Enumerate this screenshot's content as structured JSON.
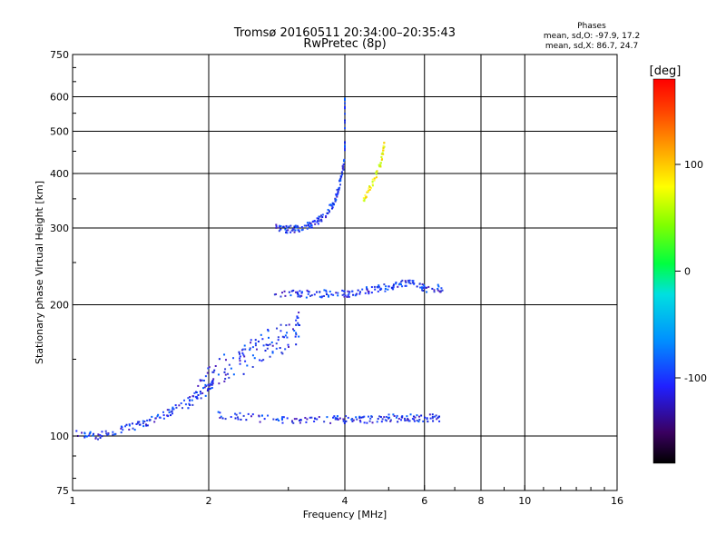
{
  "chart_data": {
    "type": "scatter",
    "title": "Tromsø 20160511 20:34:00–20:35:43",
    "subtitle": "RwPretec (8p)",
    "xlabel": "Frequency [MHz]",
    "ylabel": "Stationary phase Virtual Height [km]",
    "x_scale": "log",
    "y_scale": "log",
    "xlim": [
      1,
      16
    ],
    "ylim": [
      75,
      750
    ],
    "x_ticks": [
      1,
      2,
      4,
      6,
      8,
      10,
      16
    ],
    "y_ticks": [
      75,
      100,
      200,
      300,
      400,
      500,
      600,
      750
    ],
    "x_gridlines": [
      2,
      4,
      6,
      8,
      10
    ],
    "y_gridlines": [
      100,
      200,
      300,
      400,
      500,
      600
    ],
    "grid": true,
    "colorbar": {
      "label": "[deg]",
      "range": [
        -180,
        180
      ],
      "ticks": [
        100,
        0,
        -100
      ]
    },
    "stats": {
      "heading": "Phases",
      "line1": "mean, sd,O:  -97.9, 17.2",
      "line2": "mean, sd,X:  86.7, 24.7"
    },
    "traces": [
      {
        "desc": "E-region O-trace",
        "f": [
          1.02,
          1.15,
          1.3,
          1.45,
          1.6,
          1.75,
          1.9,
          2.05
        ],
        "h": [
          101,
          100,
          104,
          107,
          112,
          118,
          125,
          132
        ]
      },
      {
        "desc": "Es flat trace",
        "f": [
          2.1,
          2.5,
          3.0,
          3.5,
          4.0,
          4.5,
          5.0,
          5.5,
          6.0,
          6.5
        ],
        "h": [
          112,
          110,
          109,
          109,
          109,
          109,
          110,
          110,
          110,
          110
        ]
      },
      {
        "desc": "F1 cusp spread",
        "f": [
          1.8,
          2.0,
          2.2,
          2.4,
          2.6,
          2.8,
          3.0,
          3.2
        ],
        "h": [
          125,
          135,
          145,
          150,
          160,
          165,
          170,
          180
        ]
      },
      {
        "desc": "F1 flat trace",
        "f": [
          2.8,
          3.2,
          3.6,
          4.0,
          4.4,
          4.8,
          5.2,
          5.6,
          6.0,
          6.6
        ],
        "h": [
          212,
          212,
          212,
          212,
          215,
          218,
          222,
          225,
          218,
          218
        ]
      },
      {
        "desc": "F2 O-trace",
        "f": [
          2.8,
          3.0,
          3.2,
          3.4,
          3.6,
          3.8,
          3.9,
          4.0,
          4.0
        ],
        "h": [
          300,
          298,
          300,
          305,
          320,
          345,
          380,
          430,
          600
        ]
      },
      {
        "desc": "F2 X-trace",
        "f": [
          4.4,
          4.6,
          4.8,
          4.9
        ],
        "h": [
          350,
          380,
          420,
          470
        ]
      }
    ]
  }
}
